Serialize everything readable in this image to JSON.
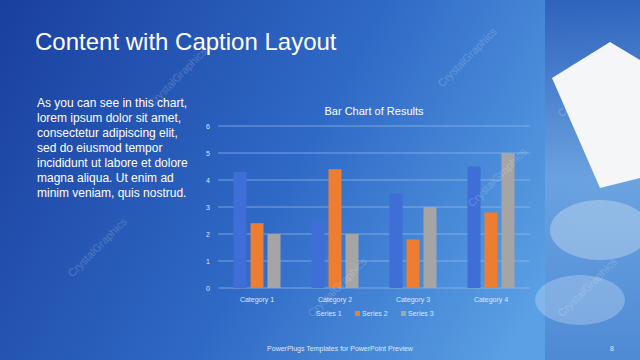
{
  "slide": {
    "title": "Content with Caption Layout",
    "caption": "As you can see in this chart, lorem ipsum dolor sit amet, consectetur adipiscing elit, sed do eiusmod tempor incididunt ut labore et dolore magna aliqua. Ut enim ad minim veniam, quis nostrud.",
    "footer": "PowerPlugs Templates for PowerPoint Preview",
    "page": 8,
    "watermark": "CrystalGraphics"
  },
  "chart_data": {
    "type": "bar",
    "title": "Bar Chart of Results",
    "categories": [
      "Category 1",
      "Category 2",
      "Category 3",
      "Category 4"
    ],
    "series": [
      {
        "name": "Series 1",
        "color": "#3f6fd6",
        "values": [
          4.3,
          2.5,
          3.5,
          4.5
        ]
      },
      {
        "name": "Series 2",
        "color": "#ed7d31",
        "values": [
          2.4,
          4.4,
          1.8,
          2.8
        ]
      },
      {
        "name": "Series 3",
        "color": "#a5a5a5",
        "values": [
          2,
          2,
          3,
          5
        ]
      }
    ],
    "ylim": [
      0,
      6
    ],
    "yticks": [
      0,
      1,
      2,
      3,
      4,
      5,
      6
    ],
    "grid": true,
    "legend": "bottom"
  }
}
